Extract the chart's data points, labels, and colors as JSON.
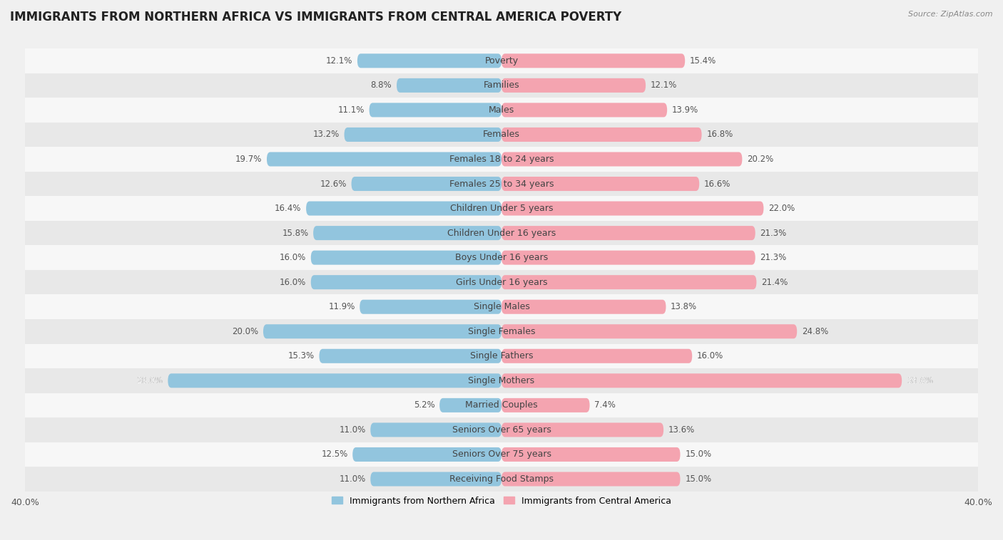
{
  "title": "IMMIGRANTS FROM NORTHERN AFRICA VS IMMIGRANTS FROM CENTRAL AMERICA POVERTY",
  "source": "Source: ZipAtlas.com",
  "categories": [
    "Poverty",
    "Families",
    "Males",
    "Females",
    "Females 18 to 24 years",
    "Females 25 to 34 years",
    "Children Under 5 years",
    "Children Under 16 years",
    "Boys Under 16 years",
    "Girls Under 16 years",
    "Single Males",
    "Single Females",
    "Single Fathers",
    "Single Mothers",
    "Married Couples",
    "Seniors Over 65 years",
    "Seniors Over 75 years",
    "Receiving Food Stamps"
  ],
  "left_values": [
    12.1,
    8.8,
    11.1,
    13.2,
    19.7,
    12.6,
    16.4,
    15.8,
    16.0,
    16.0,
    11.9,
    20.0,
    15.3,
    28.0,
    5.2,
    11.0,
    12.5,
    11.0
  ],
  "right_values": [
    15.4,
    12.1,
    13.9,
    16.8,
    20.2,
    16.6,
    22.0,
    21.3,
    21.3,
    21.4,
    13.8,
    24.8,
    16.0,
    33.6,
    7.4,
    13.6,
    15.0,
    15.0
  ],
  "left_color": "#92c5de",
  "right_color": "#f4a4b0",
  "left_label": "Immigrants from Northern Africa",
  "right_label": "Immigrants from Central America",
  "xlim": 40.0,
  "bar_height": 0.58,
  "background_color": "#f0f0f0",
  "row_colors": [
    "#f7f7f7",
    "#e8e8e8"
  ],
  "title_fontsize": 12,
  "label_fontsize": 9,
  "value_fontsize": 8.5,
  "tick_fontsize": 9
}
